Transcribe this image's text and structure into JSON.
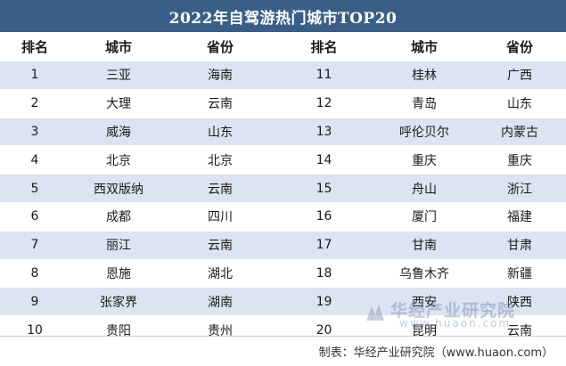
{
  "title": "2022年自驾游热门城市TOP20",
  "headers": [
    "排名",
    "城市",
    "省份",
    "排名",
    "城市",
    "省份"
  ],
  "rows": [
    [
      "1",
      "三亚",
      "海南",
      "11",
      "桂林",
      "广西"
    ],
    [
      "2",
      "大理",
      "云南",
      "12",
      "青岛",
      "山东"
    ],
    [
      "3",
      "威海",
      "山东",
      "13",
      "呼伦贝尔",
      "内蒙古"
    ],
    [
      "4",
      "北京",
      "北京",
      "14",
      "重庆",
      "重庆"
    ],
    [
      "5",
      "西双版纳",
      "云南",
      "15",
      "舟山",
      "浙江"
    ],
    [
      "6",
      "成都",
      "四川",
      "16",
      "厦门",
      "福建"
    ],
    [
      "7",
      "丽江",
      "云南",
      "17",
      "甘南",
      "甘肃"
    ],
    [
      "8",
      "恩施",
      "湖北",
      "18",
      "乌鲁木齐",
      "新疆"
    ],
    [
      "9",
      "张家界",
      "湖南",
      "19",
      "西安",
      "陕西"
    ],
    [
      "10",
      "贵阳",
      "贵州",
      "20",
      "昆明",
      "云南"
    ]
  ],
  "footer": "制表：华经产业研究院（www.huaon.com）",
  "watermark": {
    "name": "华经产业研究院",
    "url": "www.huaon.com",
    "logo_icon": "huaon-logo-icon"
  },
  "colors": {
    "title_bg": "#3a5f87",
    "band": "#dbe4f0"
  }
}
